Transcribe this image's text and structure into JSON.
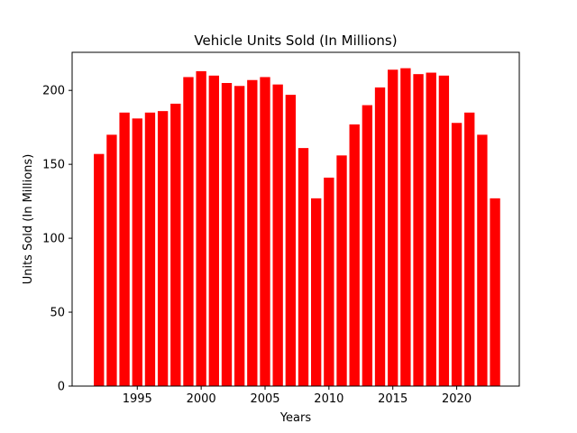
{
  "chart_data": {
    "type": "bar",
    "title": "Vehicle Units Sold (In Millions)",
    "xlabel": "Years",
    "ylabel": "Units Sold (In Millions)",
    "x": [
      1992,
      1993,
      1994,
      1995,
      1996,
      1997,
      1998,
      1999,
      2000,
      2001,
      2002,
      2003,
      2004,
      2005,
      2006,
      2007,
      2008,
      2009,
      2010,
      2011,
      2012,
      2013,
      2014,
      2015,
      2016,
      2017,
      2018,
      2019,
      2020,
      2021,
      2022,
      2023
    ],
    "values": [
      157,
      170,
      185,
      181,
      185,
      186,
      191,
      209,
      213,
      210,
      205,
      203,
      207,
      209,
      204,
      197,
      161,
      127,
      141,
      156,
      177,
      190,
      202,
      214,
      215,
      211,
      212,
      210,
      178,
      185,
      170,
      127
    ],
    "xlim": [
      1989.9,
      2024.9
    ],
    "ylim": [
      0,
      225.75
    ],
    "x_ticks": [
      1995,
      2000,
      2005,
      2010,
      2015,
      2020
    ],
    "y_ticks": [
      0,
      50,
      100,
      150,
      200
    ],
    "bar_width": 0.8,
    "bar_color": "#ff0000",
    "grid": false,
    "legend": "none"
  }
}
